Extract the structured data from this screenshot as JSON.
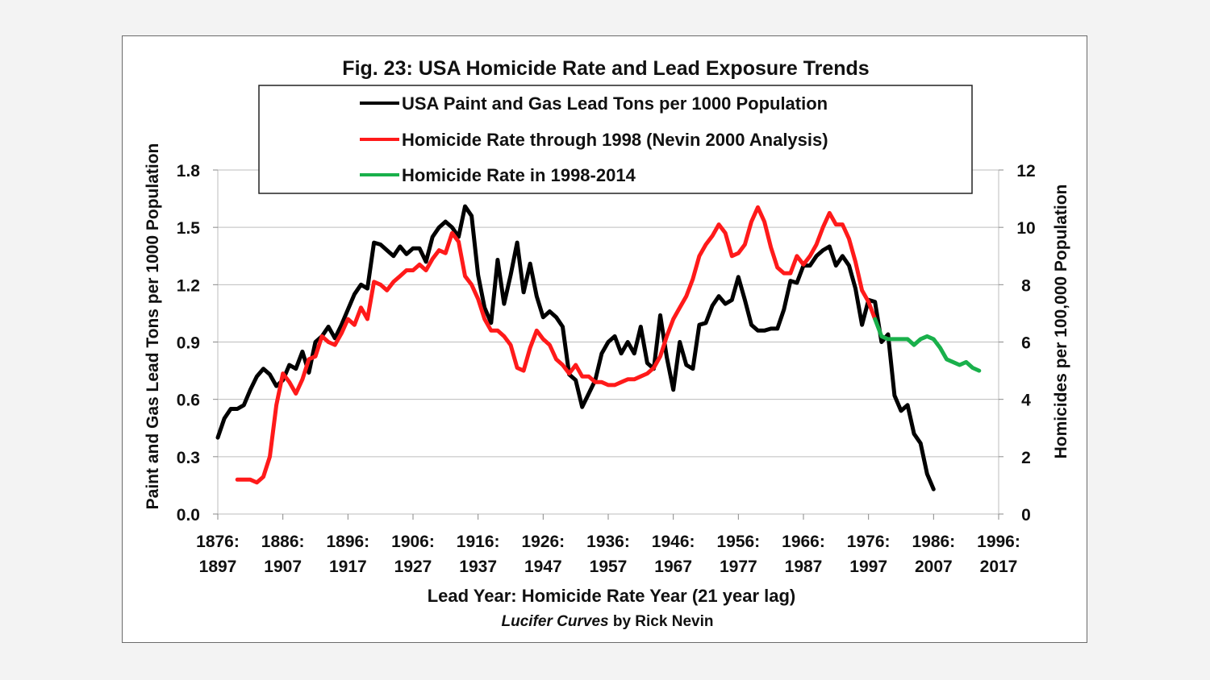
{
  "chart_data": {
    "type": "line",
    "title": "Fig. 23: USA Homicide Rate and Lead Exposure Trends",
    "xlabel": "Lead Year: Homicide Rate Year (21 year lag)",
    "credit_italic": "Lucifer Curves",
    "credit_rest": " by Rick Nevin",
    "ylabel_left": "Paint and Gas Lead Tons per 1000 Population",
    "ylabel_right": "Homicides per 100,000 Population",
    "x_range": [
      1876,
      1996
    ],
    "x_ticks": [
      {
        "lead": 1876,
        "top": "1876:",
        "bottom": "1897"
      },
      {
        "lead": 1886,
        "top": "1886:",
        "bottom": "1907"
      },
      {
        "lead": 1896,
        "top": "1896:",
        "bottom": "1917"
      },
      {
        "lead": 1906,
        "top": "1906:",
        "bottom": "1927"
      },
      {
        "lead": 1916,
        "top": "1916:",
        "bottom": "1937"
      },
      {
        "lead": 1926,
        "top": "1926:",
        "bottom": "1947"
      },
      {
        "lead": 1936,
        "top": "1936:",
        "bottom": "1957"
      },
      {
        "lead": 1946,
        "top": "1946:",
        "bottom": "1967"
      },
      {
        "lead": 1956,
        "top": "1956:",
        "bottom": "1977"
      },
      {
        "lead": 1966,
        "top": "1966:",
        "bottom": "1987"
      },
      {
        "lead": 1976,
        "top": "1976:",
        "bottom": "1997"
      },
      {
        "lead": 1986,
        "top": "1986:",
        "bottom": "2007"
      },
      {
        "lead": 1996,
        "top": "1996:",
        "bottom": "2017"
      }
    ],
    "y_left": {
      "min": 0,
      "max": 1.8,
      "ticks": [
        "0.0",
        "0.3",
        "0.6",
        "0.9",
        "1.2",
        "1.5",
        "1.8"
      ]
    },
    "y_right": {
      "min": 0,
      "max": 12,
      "ticks": [
        "0",
        "2",
        "4",
        "6",
        "8",
        "10",
        "12"
      ]
    },
    "grid": true,
    "legend_position": "top-center",
    "series": [
      {
        "name": "USA Paint and Gas Lead Tons per 1000 Population",
        "axis": "left",
        "color": "#000000",
        "points": [
          [
            1876,
            0.4
          ],
          [
            1877,
            0.5
          ],
          [
            1878,
            0.55
          ],
          [
            1879,
            0.55
          ],
          [
            1880,
            0.57
          ],
          [
            1881,
            0.65
          ],
          [
            1882,
            0.72
          ],
          [
            1883,
            0.76
          ],
          [
            1884,
            0.73
          ],
          [
            1885,
            0.67
          ],
          [
            1886,
            0.7
          ],
          [
            1887,
            0.78
          ],
          [
            1888,
            0.76
          ],
          [
            1889,
            0.85
          ],
          [
            1890,
            0.74
          ],
          [
            1891,
            0.9
          ],
          [
            1892,
            0.93
          ],
          [
            1893,
            0.98
          ],
          [
            1894,
            0.92
          ],
          [
            1895,
            0.99
          ],
          [
            1896,
            1.07
          ],
          [
            1897,
            1.15
          ],
          [
            1898,
            1.2
          ],
          [
            1899,
            1.18
          ],
          [
            1900,
            1.42
          ],
          [
            1901,
            1.41
          ],
          [
            1902,
            1.38
          ],
          [
            1903,
            1.35
          ],
          [
            1904,
            1.4
          ],
          [
            1905,
            1.36
          ],
          [
            1906,
            1.39
          ],
          [
            1907,
            1.39
          ],
          [
            1908,
            1.32
          ],
          [
            1909,
            1.45
          ],
          [
            1910,
            1.5
          ],
          [
            1911,
            1.53
          ],
          [
            1912,
            1.5
          ],
          [
            1913,
            1.45
          ],
          [
            1914,
            1.61
          ],
          [
            1915,
            1.56
          ],
          [
            1916,
            1.25
          ],
          [
            1917,
            1.08
          ],
          [
            1918,
            1.0
          ],
          [
            1919,
            1.33
          ],
          [
            1920,
            1.1
          ],
          [
            1921,
            1.25
          ],
          [
            1922,
            1.42
          ],
          [
            1923,
            1.16
          ],
          [
            1924,
            1.31
          ],
          [
            1925,
            1.14
          ],
          [
            1926,
            1.03
          ],
          [
            1927,
            1.06
          ],
          [
            1928,
            1.03
          ],
          [
            1929,
            0.98
          ],
          [
            1930,
            0.73
          ],
          [
            1931,
            0.7
          ],
          [
            1932,
            0.56
          ],
          [
            1933,
            0.63
          ],
          [
            1934,
            0.7
          ],
          [
            1935,
            0.84
          ],
          [
            1936,
            0.9
          ],
          [
            1937,
            0.93
          ],
          [
            1938,
            0.84
          ],
          [
            1939,
            0.9
          ],
          [
            1940,
            0.84
          ],
          [
            1941,
            0.98
          ],
          [
            1942,
            0.79
          ],
          [
            1943,
            0.76
          ],
          [
            1944,
            1.04
          ],
          [
            1945,
            0.82
          ],
          [
            1946,
            0.65
          ],
          [
            1947,
            0.9
          ],
          [
            1948,
            0.78
          ],
          [
            1949,
            0.76
          ],
          [
            1950,
            0.99
          ],
          [
            1951,
            1.0
          ],
          [
            1952,
            1.09
          ],
          [
            1953,
            1.14
          ],
          [
            1954,
            1.1
          ],
          [
            1955,
            1.12
          ],
          [
            1956,
            1.24
          ],
          [
            1957,
            1.12
          ],
          [
            1958,
            0.99
          ],
          [
            1959,
            0.96
          ],
          [
            1960,
            0.96
          ],
          [
            1961,
            0.97
          ],
          [
            1962,
            0.97
          ],
          [
            1963,
            1.07
          ],
          [
            1964,
            1.22
          ],
          [
            1965,
            1.21
          ],
          [
            1966,
            1.3
          ],
          [
            1967,
            1.3
          ],
          [
            1968,
            1.35
          ],
          [
            1969,
            1.38
          ],
          [
            1970,
            1.4
          ],
          [
            1971,
            1.3
          ],
          [
            1972,
            1.35
          ],
          [
            1973,
            1.3
          ],
          [
            1974,
            1.18
          ],
          [
            1975,
            0.99
          ],
          [
            1976,
            1.12
          ],
          [
            1977,
            1.11
          ],
          [
            1978,
            0.9
          ],
          [
            1979,
            0.94
          ],
          [
            1980,
            0.62
          ],
          [
            1981,
            0.54
          ],
          [
            1982,
            0.57
          ],
          [
            1983,
            0.42
          ],
          [
            1984,
            0.37
          ],
          [
            1985,
            0.21
          ],
          [
            1986,
            0.13
          ]
        ]
      },
      {
        "name": "Homicide Rate through 1998 (Nevin 2000 Analysis)",
        "axis": "right",
        "color": "#ff1a1a",
        "points": [
          [
            1879,
            1.2
          ],
          [
            1880,
            1.2
          ],
          [
            1881,
            1.2
          ],
          [
            1882,
            1.1
          ],
          [
            1883,
            1.3
          ],
          [
            1884,
            2.0
          ],
          [
            1885,
            3.8
          ],
          [
            1886,
            4.9
          ],
          [
            1887,
            4.6
          ],
          [
            1888,
            4.2
          ],
          [
            1889,
            4.7
          ],
          [
            1890,
            5.4
          ],
          [
            1891,
            5.5
          ],
          [
            1892,
            6.2
          ],
          [
            1893,
            6.0
          ],
          [
            1894,
            5.9
          ],
          [
            1895,
            6.3
          ],
          [
            1896,
            6.8
          ],
          [
            1897,
            6.6
          ],
          [
            1898,
            7.2
          ],
          [
            1899,
            6.8
          ],
          [
            1900,
            8.1
          ],
          [
            1901,
            8.0
          ],
          [
            1902,
            7.8
          ],
          [
            1903,
            8.1
          ],
          [
            1904,
            8.3
          ],
          [
            1905,
            8.5
          ],
          [
            1906,
            8.5
          ],
          [
            1907,
            8.7
          ],
          [
            1908,
            8.5
          ],
          [
            1909,
            8.9
          ],
          [
            1910,
            9.2
          ],
          [
            1911,
            9.1
          ],
          [
            1912,
            9.8
          ],
          [
            1913,
            9.5
          ],
          [
            1914,
            8.3
          ],
          [
            1915,
            8.0
          ],
          [
            1916,
            7.5
          ],
          [
            1917,
            6.8
          ],
          [
            1918,
            6.4
          ],
          [
            1919,
            6.4
          ],
          [
            1920,
            6.2
          ],
          [
            1921,
            5.9
          ],
          [
            1922,
            5.1
          ],
          [
            1923,
            5.0
          ],
          [
            1924,
            5.8
          ],
          [
            1925,
            6.4
          ],
          [
            1926,
            6.1
          ],
          [
            1927,
            5.9
          ],
          [
            1928,
            5.4
          ],
          [
            1929,
            5.2
          ],
          [
            1930,
            4.9
          ],
          [
            1931,
            5.2
          ],
          [
            1932,
            4.8
          ],
          [
            1933,
            4.8
          ],
          [
            1934,
            4.6
          ],
          [
            1935,
            4.6
          ],
          [
            1936,
            4.5
          ],
          [
            1937,
            4.5
          ],
          [
            1938,
            4.6
          ],
          [
            1939,
            4.7
          ],
          [
            1940,
            4.7
          ],
          [
            1941,
            4.8
          ],
          [
            1942,
            4.9
          ],
          [
            1943,
            5.1
          ],
          [
            1944,
            5.5
          ],
          [
            1945,
            6.2
          ],
          [
            1946,
            6.8
          ],
          [
            1947,
            7.2
          ],
          [
            1948,
            7.6
          ],
          [
            1949,
            8.2
          ],
          [
            1950,
            9.0
          ],
          [
            1951,
            9.4
          ],
          [
            1952,
            9.7
          ],
          [
            1953,
            10.1
          ],
          [
            1954,
            9.8
          ],
          [
            1955,
            9.0
          ],
          [
            1956,
            9.1
          ],
          [
            1957,
            9.4
          ],
          [
            1958,
            10.2
          ],
          [
            1959,
            10.7
          ],
          [
            1960,
            10.2
          ],
          [
            1961,
            9.3
          ],
          [
            1962,
            8.6
          ],
          [
            1963,
            8.4
          ],
          [
            1964,
            8.4
          ],
          [
            1965,
            9.0
          ],
          [
            1966,
            8.7
          ],
          [
            1967,
            9.0
          ],
          [
            1968,
            9.4
          ],
          [
            1969,
            10.0
          ],
          [
            1970,
            10.5
          ],
          [
            1971,
            10.1
          ],
          [
            1972,
            10.1
          ],
          [
            1973,
            9.6
          ],
          [
            1974,
            8.8
          ],
          [
            1975,
            7.8
          ],
          [
            1976,
            7.4
          ],
          [
            1977,
            6.8
          ]
        ]
      },
      {
        "name": "Homicide Rate in 1998-2014",
        "axis": "right",
        "color": "#19b04b",
        "points": [
          [
            1977,
            6.8
          ],
          [
            1978,
            6.2
          ],
          [
            1979,
            6.1
          ],
          [
            1980,
            6.1
          ],
          [
            1981,
            6.1
          ],
          [
            1982,
            6.1
          ],
          [
            1983,
            5.9
          ],
          [
            1984,
            6.1
          ],
          [
            1985,
            6.2
          ],
          [
            1986,
            6.1
          ],
          [
            1987,
            5.8
          ],
          [
            1988,
            5.4
          ],
          [
            1989,
            5.3
          ],
          [
            1990,
            5.2
          ],
          [
            1991,
            5.3
          ],
          [
            1992,
            5.1
          ],
          [
            1993,
            5.0
          ]
        ]
      }
    ]
  }
}
